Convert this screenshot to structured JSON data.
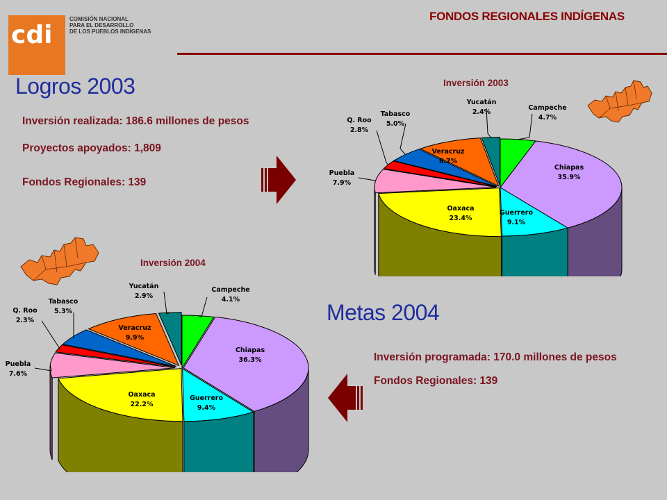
{
  "logo": {
    "mark": "cdi",
    "lines": [
      "COMISIÓN NACIONAL",
      "PARA EL DESARROLLO",
      "DE LOS PUEBLOS INDÍGENAS"
    ],
    "color": "#e87722"
  },
  "page_title": "FONDOS REGIONALES INDÍGENAS",
  "logros": {
    "heading": "Logros 2003",
    "inversion": "Inversión realizada:  186.6 millones de pesos",
    "proyectos": "Proyectos apoyados:  1,809",
    "fondos": "Fondos Regionales:  139"
  },
  "metas": {
    "heading": "Metas 2004",
    "inversion": "Inversión programada:  170.0 millones de pesos",
    "fondos": "Fondos Regionales:  139"
  },
  "colors": {
    "title": "#8a0000",
    "heading": "#1f2d9e",
    "info": "#7a1520",
    "arrow": "#7a0000",
    "map": "#f07a2a"
  },
  "chart_data": [
    {
      "type": "pie",
      "title": "Inversión 2003",
      "slices": [
        {
          "name": "Campeche",
          "value": 4.7,
          "label": "4.7%",
          "color": "#00ff00"
        },
        {
          "name": "Chiapas",
          "value": 35.9,
          "label": "35.9%",
          "color": "#cc99ff"
        },
        {
          "name": "Guerrero",
          "value": 9.1,
          "label": "9.1%",
          "color": "#00ffff"
        },
        {
          "name": "Oaxaca",
          "value": 23.4,
          "label": "23.4%",
          "color": "#ffff00"
        },
        {
          "name": "Puebla",
          "value": 7.9,
          "label": "7.9%",
          "color": "#ff99cc"
        },
        {
          "name": "Q. Roo",
          "value": 2.8,
          "label": "2.8%",
          "color": "#ff0000"
        },
        {
          "name": "Tabasco",
          "value": 5.0,
          "label": "5.0%",
          "color": "#0066cc"
        },
        {
          "name": "Veracruz",
          "value": 8.7,
          "label": "8.7%",
          "color": "#ff6600"
        },
        {
          "name": "Yucatán",
          "value": 2.4,
          "label": "2.4%",
          "color": "#008080"
        }
      ]
    },
    {
      "type": "pie",
      "title": "Inversión 2004",
      "slices": [
        {
          "name": "Campeche",
          "value": 4.1,
          "label": "4.1%",
          "color": "#00ff00"
        },
        {
          "name": "Chiapas",
          "value": 36.3,
          "label": "36.3%",
          "color": "#cc99ff"
        },
        {
          "name": "Guerrero",
          "value": 9.4,
          "label": "9.4%",
          "color": "#00ffff"
        },
        {
          "name": "Oaxaca",
          "value": 22.2,
          "label": "22.2%",
          "color": "#ffff00"
        },
        {
          "name": "Puebla",
          "value": 7.6,
          "label": "7.6%",
          "color": "#ff99cc"
        },
        {
          "name": "Q. Roo",
          "value": 2.3,
          "label": "2.3%",
          "color": "#ff0000"
        },
        {
          "name": "Tabasco",
          "value": 5.3,
          "label": "5.3%",
          "color": "#0066cc"
        },
        {
          "name": "Veracruz",
          "value": 9.9,
          "label": "9.9%",
          "color": "#ff6600"
        },
        {
          "name": "Yucatán",
          "value": 2.9,
          "label": "2.9%",
          "color": "#008080"
        }
      ]
    }
  ]
}
